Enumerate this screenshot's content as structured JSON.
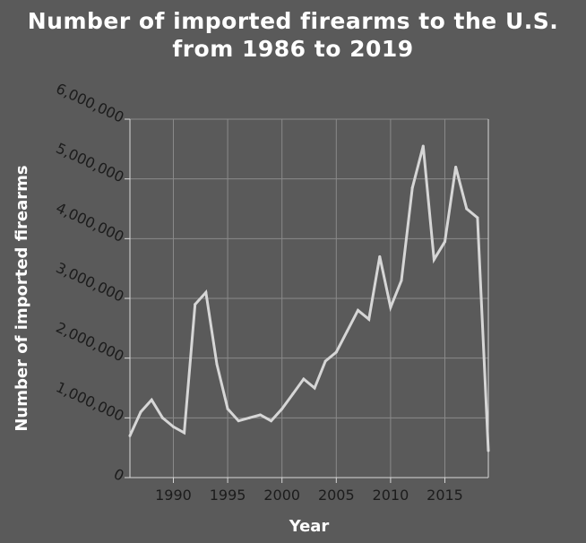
{
  "chart_data": {
    "type": "line",
    "title_line1": "Number of imported firearms to the U.S.",
    "title_line2": "from 1986 to 2019",
    "xlabel": "Year",
    "ylabel": "Number of imported firearms",
    "xlim": [
      1986,
      2019
    ],
    "ylim": [
      0,
      6000000
    ],
    "x_ticks": [
      1990,
      1995,
      2000,
      2005,
      2010,
      2015
    ],
    "y_ticks": [
      0,
      1000000,
      2000000,
      3000000,
      4000000,
      5000000,
      6000000
    ],
    "y_tick_labels": [
      "0",
      "1,000,000",
      "2,000,000",
      "3,000,000",
      "4,000,000",
      "5,000,000",
      "6,000,000"
    ],
    "grid": true,
    "x": [
      1986,
      1987,
      1988,
      1989,
      1990,
      1991,
      1992,
      1993,
      1994,
      1995,
      1996,
      1997,
      1998,
      1999,
      2000,
      2001,
      2002,
      2003,
      2004,
      2005,
      2006,
      2007,
      2008,
      2009,
      2010,
      2011,
      2012,
      2013,
      2014,
      2015,
      2016,
      2017,
      2018,
      2019
    ],
    "values": [
      700000,
      1100000,
      1300000,
      1000000,
      850000,
      750000,
      2900000,
      3100000,
      1900000,
      1150000,
      950000,
      1000000,
      1050000,
      950000,
      1150000,
      1400000,
      1650000,
      1500000,
      1950000,
      2100000,
      2450000,
      2800000,
      2650000,
      3700000,
      2850000,
      3300000,
      4850000,
      5550000,
      3650000,
      3950000,
      5200000,
      4500000,
      4350000,
      450000
    ]
  }
}
